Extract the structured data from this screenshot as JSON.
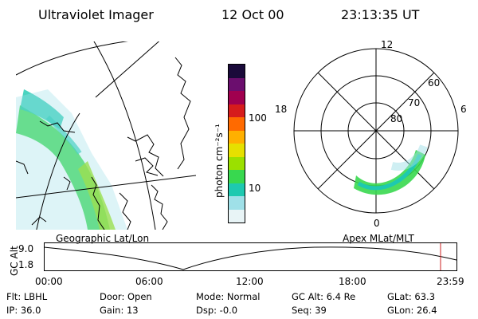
{
  "header": {
    "instrument": "Ultraviolet Imager",
    "date": "12 Oct 00",
    "time": "23:13:35 UT"
  },
  "colorbar": {
    "unit_label": "photon cm⁻²s⁻¹",
    "ticks": [
      "100",
      "10"
    ],
    "colors": [
      "#1a0a3a",
      "#6b0e6e",
      "#a0004f",
      "#d61c1c",
      "#ff6a00",
      "#ffb000",
      "#e6e000",
      "#9be000",
      "#38d84f",
      "#1ec9b0",
      "#9fe0e8",
      "#e8f4f6"
    ]
  },
  "left_panel": {
    "label": "Geographic Lat/Lon"
  },
  "polar_plot": {
    "label": "Apex MLat/MLT",
    "mlt_labels": {
      "top": "12",
      "left": "18",
      "right": "6",
      "bottom": "0"
    },
    "lat_labels": [
      "60",
      "70",
      "80"
    ]
  },
  "altitude_plot": {
    "axis_label": "GC Alt",
    "y_ticks": [
      "9.0",
      "1.8"
    ],
    "x_ticks": [
      "00:00",
      "06:00",
      "12:00",
      "18:00",
      "23:59"
    ]
  },
  "status": {
    "flt": "Flt: LBHL",
    "ip": "IP: 36.0",
    "door": "Door: Open",
    "gain": "Gain: 13",
    "mode": "Mode: Normal",
    "dsp": "Dsp:    -0.0",
    "gc_alt": "GC Alt: 6.4 Re",
    "seq": "Seq: 39",
    "glat": "GLat:  63.3",
    "glon": "GLon:  26.4"
  }
}
